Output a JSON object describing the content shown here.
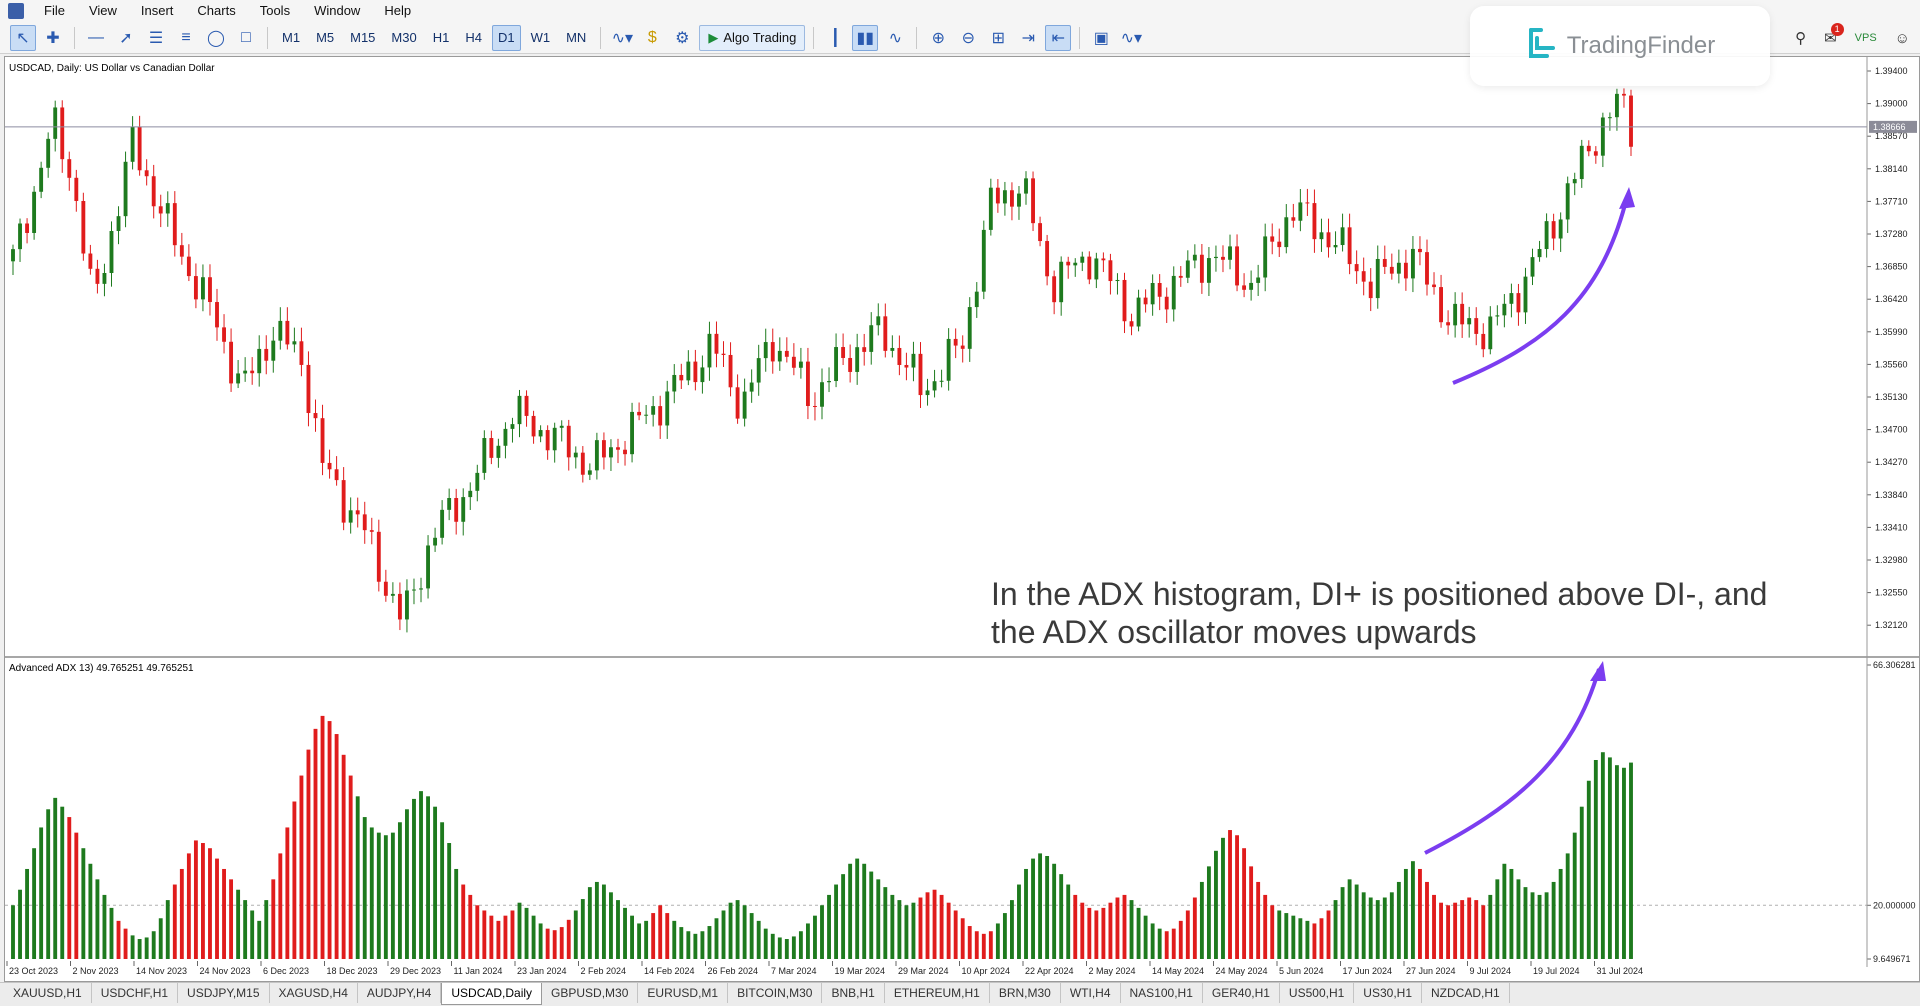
{
  "menu": [
    "File",
    "View",
    "Insert",
    "Charts",
    "Tools",
    "Window",
    "Help"
  ],
  "toolbar": {
    "timeframes": [
      "M1",
      "M5",
      "M15",
      "M30",
      "H1",
      "H4",
      "D1",
      "W1",
      "MN"
    ],
    "active_timeframe": "D1",
    "algo_label": "Algo Trading",
    "notification_count": "1"
  },
  "logo": {
    "text": "TradingFinder"
  },
  "chart": {
    "title": "USDCAD, Daily:  US Dollar vs Canadian Dollar",
    "price_labels": [
      "1.39400",
      "1.39000",
      "1.38570",
      "1.38140",
      "1.37710",
      "1.37280",
      "1.36850",
      "1.36420",
      "1.35990",
      "1.35560",
      "1.35130",
      "1.34700",
      "1.34270",
      "1.33840",
      "1.33410",
      "1.32980",
      "1.32550",
      "1.32120"
    ],
    "current_price": "1.38666",
    "annotation_line1": "In the ADX histogram, DI+ is positioned above DI-, and",
    "annotation_line2": "the ADX oscillator moves upwards",
    "colors": {
      "bull": "#1e7a1e",
      "bear": "#e01c1c",
      "arrow": "#7b3df0"
    }
  },
  "indicator": {
    "title": "Advanced ADX 13) 49.765251 49.765251",
    "scale_labels": [
      "66.306281",
      "20.000000",
      "9.649671"
    ]
  },
  "chart_data": {
    "type": "bar",
    "title": "",
    "xlabel": "",
    "ylabel": "",
    "ylim": [
      9.649671,
      66.306281
    ],
    "x_ticks": [
      "23 Oct 2023",
      "2 Nov 2023",
      "14 Nov 2023",
      "24 Nov 2023",
      "6 Dec 2023",
      "18 Dec 2023",
      "29 Dec 2023",
      "11 Jan 2024",
      "23 Jan 2024",
      "2 Feb 2024",
      "14 Feb 2024",
      "26 Feb 2024",
      "7 Mar 2024",
      "19 Mar 2024",
      "29 Mar 2024",
      "10 Apr 2024",
      "22 Apr 2024",
      "2 May 2024",
      "14 May 2024",
      "24 May 2024",
      "5 Jun 2024",
      "17 Jun 2024",
      "27 Jun 2024",
      "9 Jul 2024",
      "19 Jul 2024",
      "31 Jul 2024"
    ],
    "reference_level": 20.0,
    "adx_values": [
      20.0,
      23.0,
      27.0,
      31.0,
      35.0,
      38.5,
      40.7,
      39.0,
      37.0,
      34.0,
      31.0,
      28.0,
      25.0,
      22.0,
      19.5,
      17.0,
      15.5,
      14.2,
      13.5,
      13.8,
      15.0,
      17.5,
      21.0,
      24.0,
      27.0,
      30.0,
      32.5,
      32.0,
      31.0,
      29.0,
      27.0,
      25.0,
      23.0,
      21.0,
      19.0,
      17.0,
      21.0,
      25.0,
      30.0,
      35.0,
      40.0,
      45.0,
      50.0,
      54.0,
      56.5,
      55.5,
      53.0,
      49.0,
      45.0,
      41.0,
      37.0,
      35.0,
      34.0,
      33.5,
      34.0,
      36.0,
      38.5,
      40.5,
      42.0,
      41.0,
      39.0,
      36.0,
      32.0,
      27.0,
      24.0,
      22.0,
      20.0,
      19.0,
      18.0,
      17.0,
      18.0,
      19.0,
      20.5,
      19.5,
      18.0,
      16.5,
      15.5,
      15.2,
      15.8,
      17.2,
      19.0,
      21.2,
      23.5,
      24.5,
      24.0,
      22.5,
      21.0,
      19.5,
      18.0,
      16.5,
      17.0,
      18.5,
      20.0,
      18.5,
      17.0,
      15.8,
      15.0,
      14.5,
      15.0,
      16.0,
      17.5,
      19.0,
      20.5,
      21.0,
      20.0,
      18.5,
      17.0,
      15.5,
      14.5,
      13.8,
      13.5,
      14.0,
      15.0,
      16.5,
      18.0,
      20.0,
      22.0,
      24.0,
      26.0,
      28.0,
      29.0,
      28.0,
      26.5,
      25.0,
      23.5,
      22.0,
      21.0,
      20.0,
      20.5,
      21.5,
      22.5,
      23.0,
      22.0,
      20.5,
      19.0,
      17.5,
      16.0,
      15.0,
      14.5,
      15.0,
      16.5,
      18.5,
      21.0,
      24.0,
      27.0,
      29.0,
      30.0,
      29.5,
      28.0,
      26.0,
      24.0,
      22.0,
      20.5,
      19.5,
      19.0,
      19.5,
      20.5,
      21.5,
      22.0,
      21.0,
      19.5,
      18.0,
      16.5,
      15.5,
      15.0,
      15.5,
      17.0,
      19.0,
      21.5,
      24.5,
      27.5,
      30.5,
      33.0,
      34.5,
      33.5,
      31.0,
      27.5,
      24.5,
      22.0,
      20.0,
      19.0,
      18.5,
      18.0,
      17.5,
      17.0,
      16.5,
      17.5,
      19.0,
      21.0,
      23.5,
      25.0,
      24.0,
      22.5,
      21.5,
      21.0,
      21.5,
      22.5,
      24.5,
      27.0,
      28.5,
      27.0,
      24.5,
      22.0,
      20.5,
      20.0,
      20.5,
      21.0,
      21.5,
      21.0,
      20.0,
      22.0,
      25.0,
      28.0,
      27.0,
      25.0,
      23.5,
      22.5,
      22.0,
      22.5,
      24.5,
      27.0,
      30.0,
      34.0,
      39.0,
      44.0,
      48.0,
      49.5,
      48.5,
      47.0,
      46.5,
      47.5
    ],
    "bar_colors": [
      "green",
      "green",
      "green",
      "green",
      "green",
      "green",
      "green",
      "green",
      "red",
      "red",
      "green",
      "green",
      "green",
      "green",
      "green",
      "red",
      "red",
      "green",
      "green",
      "green",
      "green",
      "green",
      "green",
      "red",
      "red",
      "red",
      "red",
      "red",
      "red",
      "red",
      "red",
      "red",
      "green",
      "green",
      "green",
      "green",
      "green",
      "red",
      "red",
      "red",
      "red",
      "red",
      "red",
      "red",
      "red",
      "red",
      "red",
      "red",
      "red",
      "green",
      "green",
      "green",
      "green",
      "green",
      "green",
      "green",
      "green",
      "green",
      "green",
      "green",
      "green",
      "green",
      "green",
      "green",
      "red",
      "red",
      "red",
      "red",
      "red",
      "red",
      "red",
      "red",
      "green",
      "green",
      "green",
      "green",
      "red",
      "red",
      "red",
      "red",
      "green",
      "green",
      "green",
      "green",
      "green",
      "green",
      "green",
      "green",
      "green",
      "green",
      "green",
      "red",
      "red",
      "red",
      "green",
      "green",
      "green",
      "green",
      "green",
      "green",
      "green",
      "green",
      "green",
      "green",
      "green",
      "green",
      "green",
      "green",
      "green",
      "green",
      "green",
      "green",
      "green",
      "green",
      "green",
      "green",
      "green",
      "green",
      "green",
      "green",
      "green",
      "green",
      "green",
      "green",
      "green",
      "green",
      "green",
      "green",
      "green",
      "red",
      "red",
      "red",
      "red",
      "red",
      "red",
      "red",
      "red",
      "red",
      "red",
      "red",
      "green",
      "green",
      "green",
      "green",
      "green",
      "green",
      "green",
      "green",
      "green",
      "green",
      "green",
      "red",
      "red",
      "red",
      "red",
      "red",
      "red",
      "red",
      "red",
      "green",
      "green",
      "green",
      "green",
      "green",
      "red",
      "red",
      "red",
      "red",
      "red",
      "green",
      "green",
      "green",
      "green",
      "red",
      "red",
      "red",
      "red",
      "red",
      "red",
      "red",
      "green",
      "green",
      "green",
      "green",
      "green",
      "red",
      "red",
      "red",
      "green",
      "green",
      "green",
      "green",
      "green",
      "green",
      "green",
      "green",
      "green",
      "green",
      "green",
      "green",
      "red",
      "red",
      "red",
      "red",
      "red",
      "red",
      "red",
      "red",
      "red",
      "red",
      "green",
      "green",
      "green",
      "green",
      "green",
      "green",
      "green",
      "green",
      "green",
      "green",
      "green",
      "green",
      "green",
      "green",
      "green",
      "green",
      "green",
      "green",
      "green",
      "green",
      "green",
      "green",
      "green",
      "green",
      "green"
    ]
  },
  "tabs": [
    "XAUUSD,H1",
    "USDCHF,H1",
    "USDJPY,M15",
    "XAGUSD,H4",
    "AUDJPY,H4",
    "USDCAD,Daily",
    "GBPUSD,M30",
    "EURUSD,M1",
    "BITCOIN,M30",
    "BNB,H1",
    "ETHEREUM,H1",
    "BRN,M30",
    "WTI,H4",
    "NAS100,H1",
    "GER40,H1",
    "US500,H1",
    "US30,H1",
    "NZDCAD,H1"
  ],
  "active_tab": "USDCAD,Daily"
}
